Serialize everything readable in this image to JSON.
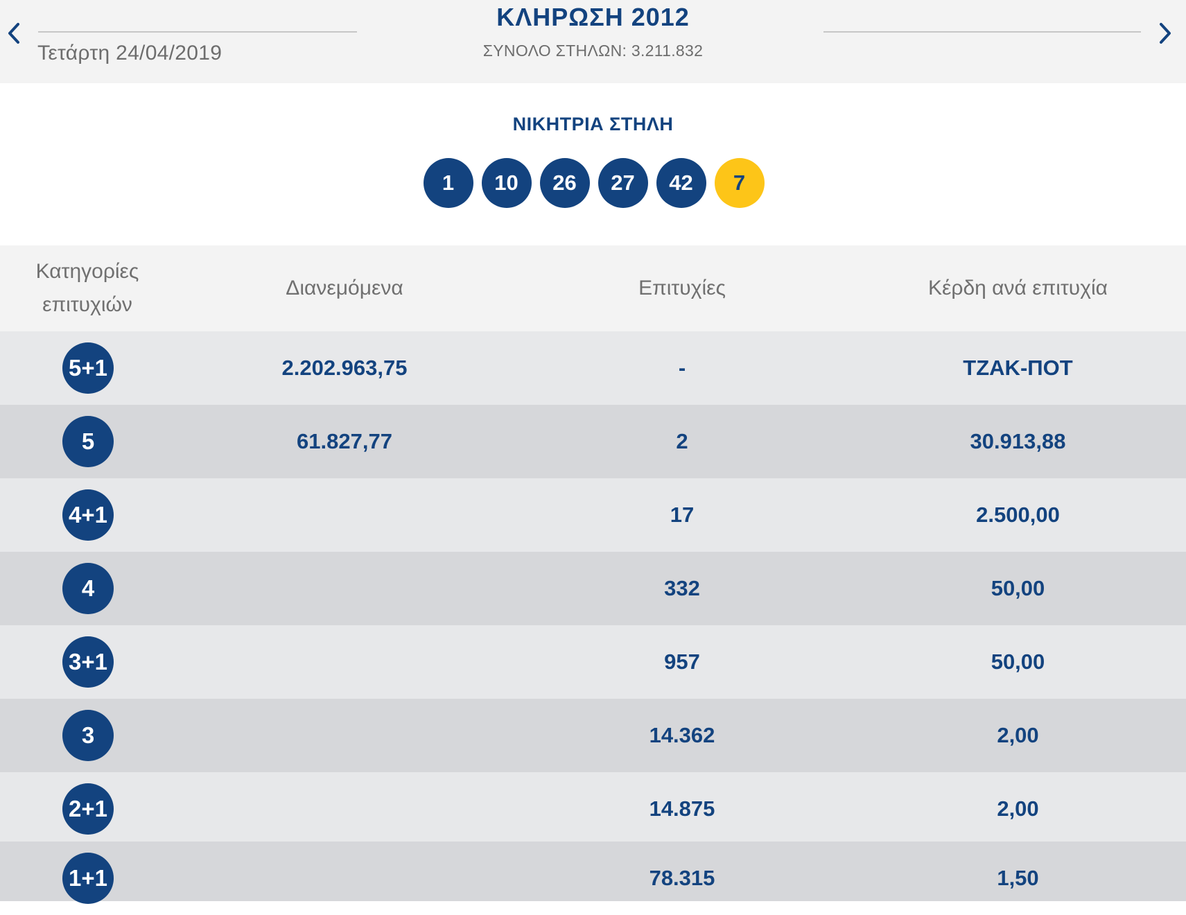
{
  "header": {
    "prev_icon": "chevron-left-icon",
    "next_icon": "chevron-right-icon",
    "date": "Τετάρτη 24/04/2019",
    "title": "ΚΛΗΡΩΣΗ 2012",
    "total_columns": "ΣΥΝΟΛΟ ΣΤΗΛΩΝ: 3.211.832"
  },
  "winning": {
    "title": "ΝΙΚΗΤΡΙΑ ΣΤΗΛΗ",
    "numbers": [
      "1",
      "10",
      "26",
      "27",
      "42"
    ],
    "bonus": "7"
  },
  "table": {
    "headers": {
      "category_line1": "Κατηγορίες",
      "category_line2": "επιτυχιών",
      "distributed": "Διανεμόμενα",
      "winners": "Επιτυχίες",
      "prize": "Κέρδη ανά επιτυχία"
    },
    "rows": [
      {
        "category": "5+1",
        "distributed": "2.202.963,75",
        "winners": "-",
        "prize": "ΤΖΑΚ-ΠΟΤ"
      },
      {
        "category": "5",
        "distributed": "61.827,77",
        "winners": "2",
        "prize": "30.913,88"
      },
      {
        "category": "4+1",
        "distributed": "",
        "winners": "17",
        "prize": "2.500,00"
      },
      {
        "category": "4",
        "distributed": "",
        "winners": "332",
        "prize": "50,00"
      },
      {
        "category": "3+1",
        "distributed": "",
        "winners": "957",
        "prize": "50,00"
      },
      {
        "category": "3",
        "distributed": "",
        "winners": "14.362",
        "prize": "2,00"
      },
      {
        "category": "2+1",
        "distributed": "",
        "winners": "14.875",
        "prize": "2,00"
      },
      {
        "category": "1+1",
        "distributed": "",
        "winners": "78.315",
        "prize": "1,50"
      }
    ]
  },
  "colors": {
    "brand_blue": "#13437f",
    "bonus_yellow": "#fdc518",
    "header_bg": "#f3f3f3",
    "row_light": "#e7e8ea",
    "row_dark": "#d6d7da"
  }
}
